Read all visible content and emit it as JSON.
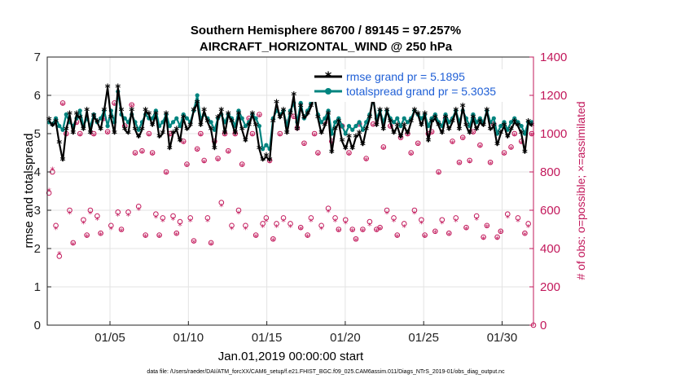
{
  "chart_data": {
    "type": "line",
    "title": "Southern Hemisphere 86700 / 89145 = 97.257%",
    "subtitle": "AIRCRAFT_HORIZONTAL_WIND @ 250 hPa",
    "xlabel": "Jan.01,2019 00:00:00 start",
    "ylabel": "rmse and totalspread",
    "ylabel_right": "# of obs: o=possible; ×=assimilated",
    "xlim": [
      1,
      32
    ],
    "ylim": [
      0,
      7
    ],
    "ylim_right": [
      0,
      1400
    ],
    "x_tick_labels": [
      "01/05",
      "01/10",
      "01/15",
      "01/20",
      "01/25",
      "01/30"
    ],
    "x_tick_values": [
      5,
      10,
      15,
      20,
      25,
      30
    ],
    "y_ticks": [
      0,
      1,
      2,
      3,
      4,
      5,
      6,
      7
    ],
    "y_ticks_right": [
      0,
      200,
      400,
      600,
      800,
      1000,
      1200,
      1400
    ],
    "grid": true,
    "legend_position": "top-right",
    "colors": {
      "rmse": "#000000",
      "spread": "#00847f",
      "obs": "#c2185b",
      "legend_text": "#1f5fd6"
    },
    "series": [
      {
        "name": "rmse grand pr = 5.1895",
        "color": "#000000",
        "marker": "asterisk",
        "values": [
          5.35,
          5.2,
          5.3,
          4.75,
          4.3,
          5.1,
          5.5,
          5.0,
          5.5,
          5.4,
          5.1,
          5.6,
          5.0,
          5.45,
          5.3,
          5.1,
          5.6,
          6.2,
          5.4,
          5.0,
          6.2,
          5.6,
          5.1,
          5.0,
          5.6,
          5.1,
          4.9,
          5.1,
          5.6,
          5.5,
          5.2,
          5.5,
          4.9,
          5.0,
          5.5,
          4.6,
          5.0,
          5.1,
          4.8,
          5.4,
          5.1,
          5.2,
          5.6,
          5.8,
          5.2,
          5.6,
          5.3,
          5.1,
          4.6,
          5.4,
          5.6,
          5.0,
          5.5,
          5.3,
          5.0,
          5.5,
          5.1,
          4.8,
          5.2,
          5.5,
          5.2,
          4.6,
          4.3,
          4.4,
          4.3,
          5.3,
          5.8,
          5.4,
          5.6,
          5.0,
          5.5,
          6.0,
          5.1,
          5.7,
          5.4,
          5.5,
          5.7,
          6.0,
          5.4,
          5.0,
          5.2,
          5.5,
          4.5,
          5.1,
          5.3,
          4.8,
          4.6,
          4.9,
          4.6,
          4.9,
          5.0,
          4.7,
          5.1,
          5.4,
          6.0,
          5.2,
          5.6,
          5.1,
          5.6,
          5.3,
          5.0,
          5.2,
          4.9,
          5.2,
          5.0,
          5.3,
          5.6,
          5.5,
          5.2,
          5.5,
          4.8,
          5.3,
          5.4,
          5.2,
          5.0,
          5.4,
          5.1,
          5.3,
          5.6,
          5.1,
          5.7,
          5.2,
          5.0,
          5.4,
          5.1,
          5.3,
          5.2,
          5.6,
          5.1,
          5.2,
          4.7,
          5.0,
          5.2,
          4.9,
          5.1,
          5.3,
          5.2,
          5.0,
          4.5,
          5.3,
          5.2
        ]
      },
      {
        "name": "totalspread grand pr = 5.3035",
        "color": "#00847f",
        "marker": "circle",
        "values": [
          5.3,
          5.25,
          5.4,
          5.2,
          5.1,
          5.5,
          5.3,
          5.2,
          5.4,
          5.6,
          5.2,
          5.4,
          5.2,
          5.5,
          5.3,
          5.4,
          5.6,
          5.2,
          5.6,
          5.3,
          6.1,
          5.5,
          5.4,
          5.3,
          5.5,
          5.3,
          5.1,
          5.3,
          5.5,
          5.4,
          5.4,
          5.6,
          5.2,
          5.3,
          5.5,
          5.2,
          5.3,
          5.4,
          5.2,
          5.5,
          5.4,
          5.3,
          5.6,
          6.0,
          5.4,
          5.5,
          5.4,
          5.3,
          5.1,
          5.4,
          5.5,
          5.3,
          5.5,
          5.4,
          5.2,
          5.6,
          5.4,
          5.2,
          5.3,
          5.5,
          5.4,
          5.2,
          4.6,
          4.7,
          4.6,
          5.4,
          5.6,
          5.5,
          5.6,
          5.2,
          5.6,
          5.8,
          5.3,
          5.8,
          5.4,
          5.6,
          5.8,
          5.9,
          5.5,
          5.3,
          5.4,
          5.6,
          5.0,
          5.3,
          5.4,
          5.2,
          5.0,
          5.2,
          5.1,
          5.2,
          5.3,
          5.1,
          5.3,
          5.5,
          5.9,
          5.4,
          5.6,
          5.3,
          5.6,
          5.4,
          5.3,
          5.4,
          5.2,
          5.4,
          5.3,
          5.4,
          5.6,
          5.5,
          5.4,
          5.5,
          5.2,
          5.4,
          5.5,
          5.3,
          5.2,
          5.5,
          5.3,
          5.4,
          5.6,
          5.3,
          5.6,
          5.4,
          5.2,
          5.5,
          5.3,
          5.4,
          5.3,
          5.6,
          5.3,
          5.4,
          5.0,
          5.2,
          5.3,
          5.1,
          5.3,
          5.4,
          5.3,
          5.2,
          5.0,
          5.3,
          5.3
        ]
      },
      {
        "name": "obs possible",
        "color": "#c2185b",
        "marker": "circle-open",
        "axis": "right",
        "values": [
          690,
          800,
          520,
          360,
          1160,
          1000,
          600,
          430,
          1060,
          1000,
          550,
          470,
          600,
          1000,
          570,
          480,
          1080,
          1010,
          520,
          1160,
          590,
          500,
          1040,
          590,
          1150,
          900,
          620,
          910,
          470,
          1000,
          900,
          580,
          470,
          560,
          800,
          1000,
          570,
          480,
          540,
          960,
          840,
          560,
          440,
          920,
          1000,
          860,
          560,
          430,
          960,
          870,
          640,
          1000,
          910,
          520,
          1000,
          600,
          840,
          520,
          1080,
          1000,
          470,
          1100,
          530,
          560,
          860,
          450,
          530,
          1000,
          560,
          1060,
          530,
          1090,
          1030,
          510,
          950,
          470,
          560,
          1000,
          900,
          520,
          1060,
          610,
          960,
          560,
          500,
          1040,
          550,
          900,
          500,
          450,
          1050,
          500,
          870,
          540,
          1050,
          500,
          510,
          930,
          600,
          1040,
          560,
          470,
          980,
          530,
          1000,
          900,
          600,
          950,
          550,
          470,
          1000,
          1010,
          490,
          800,
          550,
          1080,
          480,
          960,
          560,
          850,
          980,
          510,
          860,
          1010,
          570,
          940,
          460,
          520,
          850,
          1050,
          460,
          490,
          900,
          580,
          930,
          1000,
          560,
          960,
          480,
          530,
          1000
        ]
      },
      {
        "name": "obs assimilated",
        "color": "#c2185b",
        "marker": "asterisk",
        "axis": "right",
        "values": [
          700,
          810,
          500,
          370,
          1150,
          990,
          580,
          420,
          1050,
          990,
          530,
          460,
          580,
          990,
          550,
          470,
          1070,
          1000,
          500,
          1150,
          570,
          490,
          1030,
          570,
          1140,
          890,
          600,
          900,
          460,
          990,
          890,
          560,
          460,
          540,
          790,
          990,
          550,
          470,
          520,
          950,
          830,
          540,
          430,
          910,
          990,
          850,
          540,
          420,
          950,
          860,
          620,
          990,
          900,
          500,
          990,
          580,
          830,
          500,
          1070,
          990,
          460,
          1090,
          510,
          540,
          850,
          440,
          510,
          990,
          540,
          1050,
          510,
          1080,
          1020,
          500,
          940,
          460,
          540,
          990,
          890,
          500,
          1050,
          590,
          950,
          540,
          490,
          1030,
          530,
          890,
          490,
          440,
          1040,
          490,
          860,
          520,
          1040,
          490,
          500,
          920,
          580,
          1030,
          540,
          460,
          970,
          510,
          990,
          890,
          580,
          940,
          530,
          460,
          990,
          1000,
          480,
          790,
          530,
          1070,
          470,
          950,
          540,
          840,
          970,
          500,
          850,
          1000,
          550,
          930,
          450,
          510,
          840,
          1040,
          450,
          480,
          890,
          560,
          920,
          990,
          540,
          950,
          470,
          510,
          990
        ]
      }
    ]
  },
  "footnote": "data file: /Users/raeder/DAI/ATM_forcXX/CAM6_setup/f.e21.FHIST_BGC.f09_025.CAM6assim.011/Diags_NTrS_2019-01/obs_diag_output.nc"
}
